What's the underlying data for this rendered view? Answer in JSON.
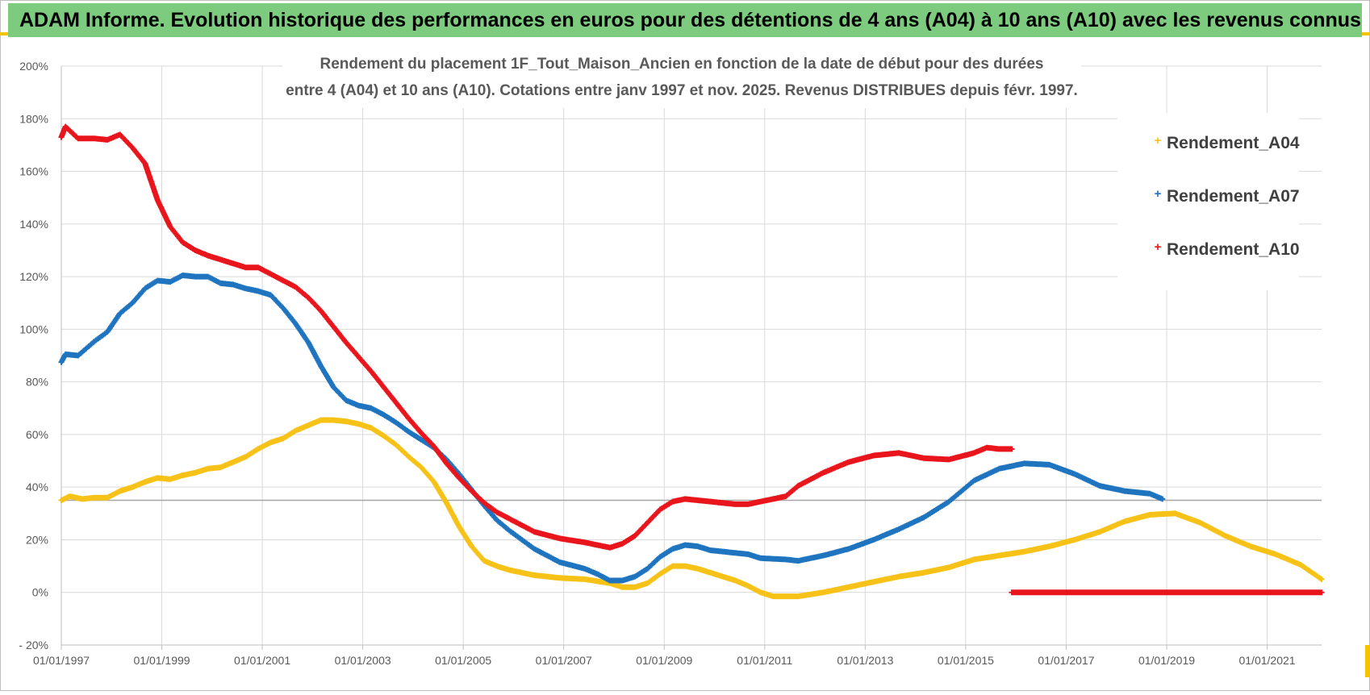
{
  "header": {
    "title": "ADAM Informe. Evolution historique des performances en euros pour des détentions de 4 ans (A04) à 10 ans (A10) avec les revenus connus distribués"
  },
  "colors": {
    "header_bg": "#7ccb7e",
    "corner_accent": "#f5c400",
    "A04": "#f7c218",
    "A07": "#1f74c0",
    "A10": "#e8151c",
    "gridline": "#d9d9d9",
    "reference_line": "#a6a6a6"
  },
  "chart_data": {
    "type": "scatter",
    "title_lines": [
      "Rendement du placement 1F_Tout_Maison_Ancien en fonction de la date de début pour des durées",
      "entre 4 (A04) et 10 ans (A10). Cotations entre janv 1997 et nov. 2025. Revenus DISTRIBUES depuis févr. 1997."
    ],
    "xlabel": "",
    "ylabel": "",
    "x_range": [
      "1997-01-01",
      "2022-02-01"
    ],
    "x_ticks": [
      "01/01/1997",
      "01/01/1999",
      "01/01/2001",
      "01/01/2003",
      "01/01/2005",
      "01/01/2007",
      "01/01/2009",
      "01/01/2011",
      "01/01/2013",
      "01/01/2015",
      "01/01/2017",
      "01/01/2019",
      "01/01/2021"
    ],
    "ylim": [
      -20,
      200
    ],
    "y_ticks": [
      "- 20%",
      "0%",
      "20%",
      "40%",
      "60%",
      "80%",
      "100%",
      "120%",
      "140%",
      "160%",
      "180%",
      "200%"
    ],
    "y_tick_values": [
      -20,
      0,
      20,
      40,
      60,
      80,
      100,
      120,
      140,
      160,
      180,
      200
    ],
    "grid": true,
    "reference_line_y": 35,
    "legend": {
      "position": "right",
      "entries": [
        "Rendement_A04",
        "Rendement_A07",
        "Rendement_A10"
      ]
    },
    "series": [
      {
        "name": "Rendement_A04",
        "color": "#f7c218",
        "points": [
          [
            "1997-01-01",
            35
          ],
          [
            "1997-03-01",
            36.5
          ],
          [
            "1997-06-01",
            35.5
          ],
          [
            "1997-09-01",
            36
          ],
          [
            "1997-12-01",
            36
          ],
          [
            "1998-03-01",
            38.5
          ],
          [
            "1998-06-01",
            40
          ],
          [
            "1998-09-01",
            42
          ],
          [
            "1998-12-01",
            43.5
          ],
          [
            "1999-03-01",
            43
          ],
          [
            "1999-06-01",
            44.5
          ],
          [
            "1999-09-01",
            45.5
          ],
          [
            "1999-12-01",
            47
          ],
          [
            "2000-03-01",
            47.5
          ],
          [
            "2000-06-01",
            49.5
          ],
          [
            "2000-09-01",
            51.5
          ],
          [
            "2000-12-01",
            54.5
          ],
          [
            "2001-03-01",
            57
          ],
          [
            "2001-06-01",
            58.5
          ],
          [
            "2001-09-01",
            61.5
          ],
          [
            "2001-12-01",
            63.5
          ],
          [
            "2002-03-01",
            65.5
          ],
          [
            "2002-06-01",
            65.5
          ],
          [
            "2002-09-01",
            65
          ],
          [
            "2002-12-01",
            64
          ],
          [
            "2003-03-01",
            62.5
          ],
          [
            "2003-06-01",
            59.5
          ],
          [
            "2003-09-01",
            56
          ],
          [
            "2003-12-01",
            51.5
          ],
          [
            "2004-03-01",
            47.5
          ],
          [
            "2004-06-01",
            42
          ],
          [
            "2004-09-01",
            34
          ],
          [
            "2004-12-01",
            25
          ],
          [
            "2005-03-01",
            17.5
          ],
          [
            "2005-06-01",
            12
          ],
          [
            "2005-09-01",
            10
          ],
          [
            "2005-12-01",
            8.5
          ],
          [
            "2006-06-01",
            6.5
          ],
          [
            "2006-12-01",
            5.5
          ],
          [
            "2007-06-01",
            5
          ],
          [
            "2007-12-01",
            3.5
          ],
          [
            "2008-03-01",
            2
          ],
          [
            "2008-06-01",
            2
          ],
          [
            "2008-09-01",
            3.5
          ],
          [
            "2008-12-01",
            7
          ],
          [
            "2009-03-01",
            10
          ],
          [
            "2009-06-01",
            10
          ],
          [
            "2009-09-01",
            9
          ],
          [
            "2009-12-01",
            7.5
          ],
          [
            "2010-06-01",
            4.5
          ],
          [
            "2010-09-01",
            2.5
          ],
          [
            "2010-12-01",
            0
          ],
          [
            "2011-03-01",
            -1.5
          ],
          [
            "2011-06-01",
            -1.5
          ],
          [
            "2011-09-01",
            -1.5
          ],
          [
            "2012-03-01",
            0
          ],
          [
            "2012-09-01",
            2
          ],
          [
            "2013-03-01",
            4
          ],
          [
            "2013-09-01",
            6
          ],
          [
            "2014-03-01",
            7.5
          ],
          [
            "2014-09-01",
            9.5
          ],
          [
            "2015-03-01",
            12.5
          ],
          [
            "2015-09-01",
            14
          ],
          [
            "2016-03-01",
            15.5
          ],
          [
            "2016-09-01",
            17.5
          ],
          [
            "2017-03-01",
            20
          ],
          [
            "2017-09-01",
            23
          ],
          [
            "2018-03-01",
            27
          ],
          [
            "2018-09-01",
            29.5
          ],
          [
            "2019-03-01",
            30
          ],
          [
            "2019-09-01",
            26.5
          ],
          [
            "2020-03-01",
            21.5
          ],
          [
            "2020-09-01",
            17.5
          ],
          [
            "2021-03-01",
            14.5
          ],
          [
            "2021-09-01",
            10.5
          ],
          [
            "2022-02-01",
            5
          ]
        ]
      },
      {
        "name": "Rendement_A07",
        "color": "#1f74c0",
        "points": [
          [
            "1997-01-01",
            87.5
          ],
          [
            "1997-02-01",
            90.5
          ],
          [
            "1997-05-01",
            90
          ],
          [
            "1997-09-01",
            95.5
          ],
          [
            "1997-12-01",
            99
          ],
          [
            "1998-03-01",
            106
          ],
          [
            "1998-06-01",
            110
          ],
          [
            "1998-09-01",
            115.5
          ],
          [
            "1998-12-01",
            118.5
          ],
          [
            "1999-03-01",
            118
          ],
          [
            "1999-06-01",
            120.5
          ],
          [
            "1999-09-01",
            120
          ],
          [
            "1999-12-01",
            120
          ],
          [
            "2000-03-01",
            117.5
          ],
          [
            "2000-06-01",
            117
          ],
          [
            "2000-09-01",
            115.5
          ],
          [
            "2000-12-01",
            114.5
          ],
          [
            "2001-03-01",
            113
          ],
          [
            "2001-06-01",
            108
          ],
          [
            "2001-09-01",
            102
          ],
          [
            "2001-12-01",
            95
          ],
          [
            "2002-03-01",
            86
          ],
          [
            "2002-06-01",
            78
          ],
          [
            "2002-09-01",
            73
          ],
          [
            "2002-12-01",
            71
          ],
          [
            "2003-03-01",
            70
          ],
          [
            "2003-06-01",
            67.5
          ],
          [
            "2003-09-01",
            64.5
          ],
          [
            "2003-12-01",
            61
          ],
          [
            "2004-03-01",
            58
          ],
          [
            "2004-06-01",
            55
          ],
          [
            "2004-09-01",
            50.5
          ],
          [
            "2004-12-01",
            45
          ],
          [
            "2005-03-01",
            39
          ],
          [
            "2005-06-01",
            33
          ],
          [
            "2005-09-01",
            27.5
          ],
          [
            "2005-12-01",
            23.5
          ],
          [
            "2006-06-01",
            16.5
          ],
          [
            "2006-12-01",
            11.5
          ],
          [
            "2007-06-01",
            9
          ],
          [
            "2007-09-01",
            7
          ],
          [
            "2007-12-01",
            4.5
          ],
          [
            "2008-03-01",
            4.5
          ],
          [
            "2008-06-01",
            6
          ],
          [
            "2008-09-01",
            9
          ],
          [
            "2008-12-01",
            13.5
          ],
          [
            "2009-03-01",
            16.5
          ],
          [
            "2009-06-01",
            18
          ],
          [
            "2009-09-01",
            17.5
          ],
          [
            "2009-12-01",
            16
          ],
          [
            "2010-06-01",
            15
          ],
          [
            "2010-09-01",
            14.5
          ],
          [
            "2010-12-01",
            13
          ],
          [
            "2011-06-01",
            12.5
          ],
          [
            "2011-09-01",
            12
          ],
          [
            "2012-03-01",
            14
          ],
          [
            "2012-09-01",
            16.5
          ],
          [
            "2013-03-01",
            20
          ],
          [
            "2013-09-01",
            24
          ],
          [
            "2014-03-01",
            28.5
          ],
          [
            "2014-09-01",
            34.5
          ],
          [
            "2015-03-01",
            42.5
          ],
          [
            "2015-09-01",
            47
          ],
          [
            "2016-03-01",
            49
          ],
          [
            "2016-09-01",
            48.5
          ],
          [
            "2017-03-01",
            45
          ],
          [
            "2017-09-01",
            40.5
          ],
          [
            "2018-03-01",
            38.5
          ],
          [
            "2018-09-01",
            37.5
          ],
          [
            "2018-12-01",
            35.5
          ]
        ]
      },
      {
        "name": "Rendement_A10",
        "color": "#e8151c",
        "points": [
          [
            "1997-01-01",
            173
          ],
          [
            "1997-02-01",
            177
          ],
          [
            "1997-05-01",
            172.5
          ],
          [
            "1997-09-01",
            172.5
          ],
          [
            "1997-12-01",
            172
          ],
          [
            "1998-03-01",
            174
          ],
          [
            "1998-06-01",
            169
          ],
          [
            "1998-09-01",
            163
          ],
          [
            "1998-12-01",
            149
          ],
          [
            "1999-03-01",
            139
          ],
          [
            "1999-06-01",
            133
          ],
          [
            "1999-09-01",
            130
          ],
          [
            "1999-12-01",
            128
          ],
          [
            "2000-03-01",
            126.5
          ],
          [
            "2000-06-01",
            125
          ],
          [
            "2000-09-01",
            123.5
          ],
          [
            "2000-12-01",
            123.5
          ],
          [
            "2001-03-01",
            121
          ],
          [
            "2001-06-01",
            118.5
          ],
          [
            "2001-09-01",
            116
          ],
          [
            "2001-12-01",
            112
          ],
          [
            "2002-03-01",
            107
          ],
          [
            "2002-06-01",
            101
          ],
          [
            "2002-09-01",
            95
          ],
          [
            "2002-12-01",
            89.5
          ],
          [
            "2003-03-01",
            84
          ],
          [
            "2003-06-01",
            78
          ],
          [
            "2003-09-01",
            72
          ],
          [
            "2003-12-01",
            66
          ],
          [
            "2004-03-01",
            60.5
          ],
          [
            "2004-06-01",
            55.5
          ],
          [
            "2004-09-01",
            49
          ],
          [
            "2004-12-01",
            43.5
          ],
          [
            "2005-03-01",
            38.5
          ],
          [
            "2005-06-01",
            34
          ],
          [
            "2005-09-01",
            30.5
          ],
          [
            "2005-12-01",
            28
          ],
          [
            "2006-06-01",
            23
          ],
          [
            "2006-12-01",
            20.5
          ],
          [
            "2007-06-01",
            19
          ],
          [
            "2007-09-01",
            18
          ],
          [
            "2007-12-01",
            17
          ],
          [
            "2008-03-01",
            18.5
          ],
          [
            "2008-06-01",
            21.5
          ],
          [
            "2008-09-01",
            26.5
          ],
          [
            "2008-12-01",
            31.5
          ],
          [
            "2009-03-01",
            34.5
          ],
          [
            "2009-06-01",
            35.5
          ],
          [
            "2009-09-01",
            35
          ],
          [
            "2009-12-01",
            34.5
          ],
          [
            "2010-06-01",
            33.5
          ],
          [
            "2010-09-01",
            33.5
          ],
          [
            "2010-12-01",
            34.5
          ],
          [
            "2011-06-01",
            36.5
          ],
          [
            "2011-09-01",
            40.5
          ],
          [
            "2012-03-01",
            45.5
          ],
          [
            "2012-09-01",
            49.5
          ],
          [
            "2013-03-01",
            52
          ],
          [
            "2013-09-01",
            53
          ],
          [
            "2014-03-01",
            51
          ],
          [
            "2014-09-01",
            50.5
          ],
          [
            "2015-03-01",
            53
          ],
          [
            "2015-06-01",
            55
          ],
          [
            "2015-09-01",
            54.5
          ],
          [
            "2015-12-01",
            54.5
          ]
        ]
      },
      {
        "name": "",
        "color": "#e8151c",
        "points": [
          [
            "2015-12-01",
            0
          ],
          [
            "2022-02-01",
            0
          ]
        ]
      }
    ]
  }
}
